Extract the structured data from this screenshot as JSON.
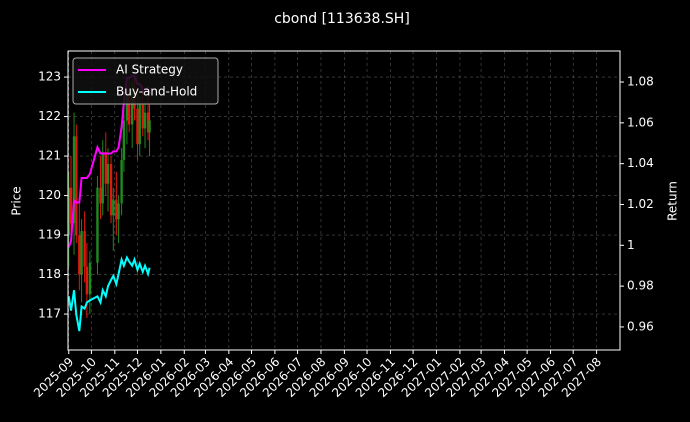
{
  "chart_data": {
    "type": "candlestick",
    "title": "cbond [113638.SH]",
    "y_label": "Price",
    "y2_label": "Return",
    "x": [
      "2025-09-01",
      "2025-09-04",
      "2025-09-08",
      "2025-09-11",
      "2025-09-15",
      "2025-09-18",
      "2025-09-22",
      "2025-09-25",
      "2025-09-29",
      "2025-10-09",
      "2025-10-13",
      "2025-10-16",
      "2025-10-20",
      "2025-10-23",
      "2025-10-27",
      "2025-10-30",
      "2025-11-03",
      "2025-11-06",
      "2025-11-10",
      "2025-11-13",
      "2025-11-17",
      "2025-11-20",
      "2025-11-24",
      "2025-11-27",
      "2025-12-01",
      "2025-12-04",
      "2025-12-08",
      "2025-12-11",
      "2025-12-15",
      "2025-12-17"
    ],
    "open": [
      119.0,
      120.2,
      119.3,
      121.5,
      119.0,
      118.0,
      119.1,
      118.2,
      117.5,
      118.3,
      120.2,
      119.8,
      121.1,
      120.3,
      120.8,
      119.5,
      119.9,
      119.4,
      119.8,
      120.9,
      121.9,
      122.5,
      121.8,
      122.6,
      122.2,
      121.3,
      122.3,
      121.7,
      122.1,
      121.6
    ],
    "high": [
      120.6,
      121.0,
      122.1,
      121.8,
      119.8,
      119.4,
      119.6,
      118.8,
      118.6,
      120.5,
      121.0,
      121.4,
      121.6,
      121.2,
      121.0,
      120.2,
      120.6,
      120.0,
      121.2,
      122.3,
      122.8,
      123.0,
      122.9,
      123.0,
      122.6,
      122.5,
      122.8,
      122.4,
      122.6,
      122.3
    ],
    "low": [
      118.2,
      119.0,
      118.5,
      118.8,
      117.6,
      117.3,
      117.8,
      116.9,
      117.0,
      118.0,
      119.4,
      119.5,
      120.0,
      119.6,
      119.3,
      118.6,
      119.0,
      118.8,
      119.5,
      120.6,
      121.3,
      121.6,
      121.2,
      121.9,
      120.9,
      121.0,
      121.5,
      121.2,
      121.4,
      121.0
    ],
    "close": [
      120.2,
      119.3,
      121.5,
      119.0,
      118.0,
      119.1,
      118.2,
      117.5,
      118.3,
      120.2,
      119.8,
      121.1,
      120.3,
      120.8,
      119.5,
      119.9,
      119.4,
      119.8,
      120.9,
      121.9,
      122.5,
      121.8,
      122.6,
      122.2,
      121.3,
      122.3,
      121.7,
      122.1,
      121.6,
      121.9
    ],
    "up_color": "#1f8a1f",
    "down_color": "#e0190f",
    "series": [
      {
        "name": "AI Strategy",
        "color": "#ff00ff",
        "axis": "y2",
        "values": [
          0.999,
          1.002,
          1.022,
          1.021,
          1.021,
          1.033,
          1.033,
          1.033,
          1.035,
          1.048,
          1.045,
          1.045,
          1.045,
          1.045,
          1.045,
          1.046,
          1.046,
          1.048,
          1.058,
          1.07,
          1.082,
          1.082,
          1.083,
          1.083,
          1.079,
          1.079,
          1.076,
          1.075,
          1.077,
          1.074
        ]
      },
      {
        "name": "Buy-and-Hold",
        "color": "#00ffff",
        "axis": "y2",
        "values": [
          0.975,
          0.968,
          0.978,
          0.966,
          0.958,
          0.97,
          0.969,
          0.972,
          0.973,
          0.975,
          0.972,
          0.978,
          0.975,
          0.98,
          0.983,
          0.985,
          0.981,
          0.986,
          0.993,
          0.99,
          0.994,
          0.992,
          0.99,
          0.993,
          0.988,
          0.991,
          0.987,
          0.99,
          0.986,
          0.989
        ]
      }
    ],
    "xlim": [
      "2025-08-31",
      "2027-09-01"
    ],
    "xticks": [
      "2025-09",
      "2025-10",
      "2025-11",
      "2025-12",
      "2026-01",
      "2026-02",
      "2026-03",
      "2026-04",
      "2026-05",
      "2026-06",
      "2026-07",
      "2026-08",
      "2026-09",
      "2026-10",
      "2026-11",
      "2026-12",
      "2027-01",
      "2027-02",
      "2027-03",
      "2027-04",
      "2027-05",
      "2027-06",
      "2027-07",
      "2027-08"
    ],
    "ylim": [
      116.09,
      123.66
    ],
    "yticks": [
      117,
      118,
      119,
      120,
      121,
      122,
      123
    ],
    "y2lim": [
      0.9487,
      1.0952
    ],
    "y2ticks": [
      0.96,
      0.98,
      1.0,
      1.02,
      1.04,
      1.06,
      1.08
    ],
    "grid": true,
    "legend": "upper left"
  }
}
